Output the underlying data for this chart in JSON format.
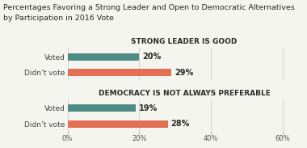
{
  "title_line1": "Percentages Favoring a Strong Leader and Open to Democratic Alternatives",
  "title_line2": "by Participation in 2016 Vote",
  "section1_title": "STRONG LEADER IS GOOD",
  "section2_title": "DEMOCRACY IS NOT ALWAYS PREFERABLE",
  "categories": [
    "Voted",
    "Didn’t vote"
  ],
  "section1_values": [
    20,
    29
  ],
  "section2_values": [
    19,
    28
  ],
  "bar_color_voted": "#4d8b87",
  "bar_color_didnt": "#e36f54",
  "xlim": [
    0,
    65
  ],
  "xticks": [
    0,
    20,
    40,
    60
  ],
  "xticklabels": [
    "0%",
    "20%",
    "40%",
    "60%"
  ],
  "label_fontsize": 6.5,
  "title_fontsize": 6.8,
  "section_title_fontsize": 6.5,
  "value_fontsize": 7.0,
  "background_color": "#f5f5ef",
  "bar_height": 0.45,
  "text_color": "#2a2a2a"
}
